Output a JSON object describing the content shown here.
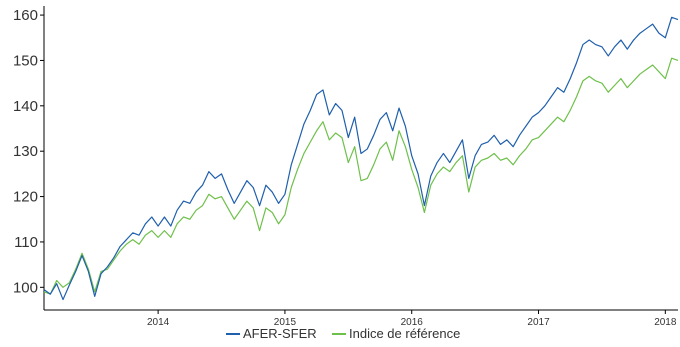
{
  "chart_data": {
    "type": "line",
    "title": "",
    "xlabel": "",
    "ylabel": "",
    "x_ticks": [
      "2014",
      "2015",
      "2016",
      "2017",
      "2018"
    ],
    "y_ticks": [
      100,
      110,
      120,
      130,
      140,
      150,
      160
    ],
    "xlim": [
      2013.1,
      2018.1
    ],
    "ylim": [
      95,
      162
    ],
    "grid": false,
    "legend_position": "bottom-center",
    "series": [
      {
        "name": "AFER-SFER",
        "color": "#1f5fad",
        "points": [
          [
            2013.1,
            99.5
          ],
          [
            2013.15,
            98.5
          ],
          [
            2013.2,
            100.8
          ],
          [
            2013.25,
            97.3
          ],
          [
            2013.3,
            100.5
          ],
          [
            2013.35,
            103.5
          ],
          [
            2013.4,
            107.0
          ],
          [
            2013.45,
            103.5
          ],
          [
            2013.5,
            98.0
          ],
          [
            2013.55,
            103.0
          ],
          [
            2013.6,
            104.5
          ],
          [
            2013.65,
            106.5
          ],
          [
            2013.7,
            109.0
          ],
          [
            2013.75,
            110.5
          ],
          [
            2013.8,
            112.0
          ],
          [
            2013.85,
            111.5
          ],
          [
            2013.9,
            114.0
          ],
          [
            2013.95,
            115.5
          ],
          [
            2014.0,
            113.5
          ],
          [
            2014.05,
            115.5
          ],
          [
            2014.1,
            113.5
          ],
          [
            2014.15,
            117.0
          ],
          [
            2014.2,
            119.0
          ],
          [
            2014.25,
            118.5
          ],
          [
            2014.3,
            121.0
          ],
          [
            2014.35,
            122.5
          ],
          [
            2014.4,
            125.5
          ],
          [
            2014.45,
            124.0
          ],
          [
            2014.5,
            125.0
          ],
          [
            2014.55,
            121.5
          ],
          [
            2014.6,
            118.5
          ],
          [
            2014.65,
            121.0
          ],
          [
            2014.7,
            123.5
          ],
          [
            2014.75,
            122.0
          ],
          [
            2014.8,
            118.0
          ],
          [
            2014.85,
            122.5
          ],
          [
            2014.9,
            121.0
          ],
          [
            2014.95,
            118.5
          ],
          [
            2015.0,
            120.5
          ],
          [
            2015.05,
            127.0
          ],
          [
            2015.1,
            131.5
          ],
          [
            2015.15,
            136.0
          ],
          [
            2015.2,
            139.0
          ],
          [
            2015.25,
            142.5
          ],
          [
            2015.3,
            143.5
          ],
          [
            2015.35,
            138.0
          ],
          [
            2015.4,
            140.5
          ],
          [
            2015.45,
            139.0
          ],
          [
            2015.5,
            133.0
          ],
          [
            2015.55,
            137.5
          ],
          [
            2015.6,
            129.5
          ],
          [
            2015.65,
            130.5
          ],
          [
            2015.7,
            133.5
          ],
          [
            2015.75,
            137.0
          ],
          [
            2015.8,
            138.5
          ],
          [
            2015.85,
            134.5
          ],
          [
            2015.9,
            139.5
          ],
          [
            2015.95,
            135.5
          ],
          [
            2016.0,
            129.0
          ],
          [
            2016.05,
            125.0
          ],
          [
            2016.1,
            118.0
          ],
          [
            2016.15,
            124.5
          ],
          [
            2016.2,
            127.5
          ],
          [
            2016.25,
            129.5
          ],
          [
            2016.3,
            127.5
          ],
          [
            2016.35,
            130.0
          ],
          [
            2016.4,
            132.5
          ],
          [
            2016.45,
            124.0
          ],
          [
            2016.5,
            129.0
          ],
          [
            2016.55,
            131.5
          ],
          [
            2016.6,
            132.0
          ],
          [
            2016.65,
            133.5
          ],
          [
            2016.7,
            131.5
          ],
          [
            2016.75,
            132.5
          ],
          [
            2016.8,
            131.0
          ],
          [
            2016.85,
            133.5
          ],
          [
            2016.9,
            135.5
          ],
          [
            2016.95,
            137.5
          ],
          [
            2017.0,
            138.5
          ],
          [
            2017.05,
            140.0
          ],
          [
            2017.1,
            142.0
          ],
          [
            2017.15,
            144.0
          ],
          [
            2017.2,
            143.0
          ],
          [
            2017.25,
            146.0
          ],
          [
            2017.3,
            149.5
          ],
          [
            2017.35,
            153.5
          ],
          [
            2017.4,
            154.5
          ],
          [
            2017.45,
            153.5
          ],
          [
            2017.5,
            153.0
          ],
          [
            2017.55,
            151.0
          ],
          [
            2017.6,
            153.0
          ],
          [
            2017.65,
            154.5
          ],
          [
            2017.7,
            152.5
          ],
          [
            2017.75,
            154.5
          ],
          [
            2017.8,
            156.0
          ],
          [
            2017.85,
            157.0
          ],
          [
            2017.9,
            158.0
          ],
          [
            2017.95,
            156.0
          ],
          [
            2018.0,
            155.0
          ],
          [
            2018.05,
            159.5
          ],
          [
            2018.1,
            159.0
          ]
        ]
      },
      {
        "name": "Indice de référence",
        "color": "#6fc04b",
        "points": [
          [
            2013.1,
            99.0
          ],
          [
            2013.15,
            98.5
          ],
          [
            2013.2,
            101.5
          ],
          [
            2013.25,
            100.0
          ],
          [
            2013.3,
            101.0
          ],
          [
            2013.35,
            104.0
          ],
          [
            2013.4,
            107.5
          ],
          [
            2013.45,
            104.0
          ],
          [
            2013.5,
            99.0
          ],
          [
            2013.55,
            103.5
          ],
          [
            2013.6,
            104.0
          ],
          [
            2013.65,
            106.0
          ],
          [
            2013.7,
            108.0
          ],
          [
            2013.75,
            109.5
          ],
          [
            2013.8,
            110.5
          ],
          [
            2013.85,
            109.5
          ],
          [
            2013.9,
            111.5
          ],
          [
            2013.95,
            112.5
          ],
          [
            2014.0,
            111.0
          ],
          [
            2014.05,
            112.5
          ],
          [
            2014.1,
            111.0
          ],
          [
            2014.15,
            114.0
          ],
          [
            2014.2,
            115.5
          ],
          [
            2014.25,
            115.0
          ],
          [
            2014.3,
            117.0
          ],
          [
            2014.35,
            118.0
          ],
          [
            2014.4,
            120.5
          ],
          [
            2014.45,
            119.5
          ],
          [
            2014.5,
            120.0
          ],
          [
            2014.55,
            117.5
          ],
          [
            2014.6,
            115.0
          ],
          [
            2014.65,
            117.0
          ],
          [
            2014.7,
            119.0
          ],
          [
            2014.75,
            117.5
          ],
          [
            2014.8,
            112.5
          ],
          [
            2014.85,
            117.5
          ],
          [
            2014.9,
            116.5
          ],
          [
            2014.95,
            114.0
          ],
          [
            2015.0,
            116.0
          ],
          [
            2015.05,
            122.0
          ],
          [
            2015.1,
            126.0
          ],
          [
            2015.15,
            129.5
          ],
          [
            2015.2,
            132.0
          ],
          [
            2015.25,
            134.5
          ],
          [
            2015.3,
            136.5
          ],
          [
            2015.35,
            132.5
          ],
          [
            2015.4,
            134.0
          ],
          [
            2015.45,
            133.0
          ],
          [
            2015.5,
            127.5
          ],
          [
            2015.55,
            131.0
          ],
          [
            2015.6,
            123.5
          ],
          [
            2015.65,
            124.0
          ],
          [
            2015.7,
            127.0
          ],
          [
            2015.75,
            130.5
          ],
          [
            2015.8,
            132.0
          ],
          [
            2015.85,
            128.0
          ],
          [
            2015.9,
            134.5
          ],
          [
            2015.95,
            131.0
          ],
          [
            2016.0,
            126.0
          ],
          [
            2016.05,
            122.0
          ],
          [
            2016.1,
            116.5
          ],
          [
            2016.15,
            122.5
          ],
          [
            2016.2,
            125.0
          ],
          [
            2016.25,
            126.5
          ],
          [
            2016.3,
            125.5
          ],
          [
            2016.35,
            127.5
          ],
          [
            2016.4,
            129.0
          ],
          [
            2016.45,
            121.0
          ],
          [
            2016.5,
            126.5
          ],
          [
            2016.55,
            128.0
          ],
          [
            2016.6,
            128.5
          ],
          [
            2016.65,
            129.5
          ],
          [
            2016.7,
            128.0
          ],
          [
            2016.75,
            128.5
          ],
          [
            2016.8,
            127.0
          ],
          [
            2016.85,
            129.0
          ],
          [
            2016.9,
            130.5
          ],
          [
            2016.95,
            132.5
          ],
          [
            2017.0,
            133.0
          ],
          [
            2017.05,
            134.5
          ],
          [
            2017.1,
            136.0
          ],
          [
            2017.15,
            137.5
          ],
          [
            2017.2,
            136.5
          ],
          [
            2017.25,
            139.0
          ],
          [
            2017.3,
            142.0
          ],
          [
            2017.35,
            145.5
          ],
          [
            2017.4,
            146.5
          ],
          [
            2017.45,
            145.5
          ],
          [
            2017.5,
            145.0
          ],
          [
            2017.55,
            143.0
          ],
          [
            2017.6,
            144.5
          ],
          [
            2017.65,
            146.0
          ],
          [
            2017.7,
            144.0
          ],
          [
            2017.75,
            145.5
          ],
          [
            2017.8,
            147.0
          ],
          [
            2017.85,
            148.0
          ],
          [
            2017.9,
            149.0
          ],
          [
            2017.95,
            147.5
          ],
          [
            2018.0,
            146.0
          ],
          [
            2018.05,
            150.5
          ],
          [
            2018.1,
            150.0
          ]
        ]
      }
    ]
  }
}
